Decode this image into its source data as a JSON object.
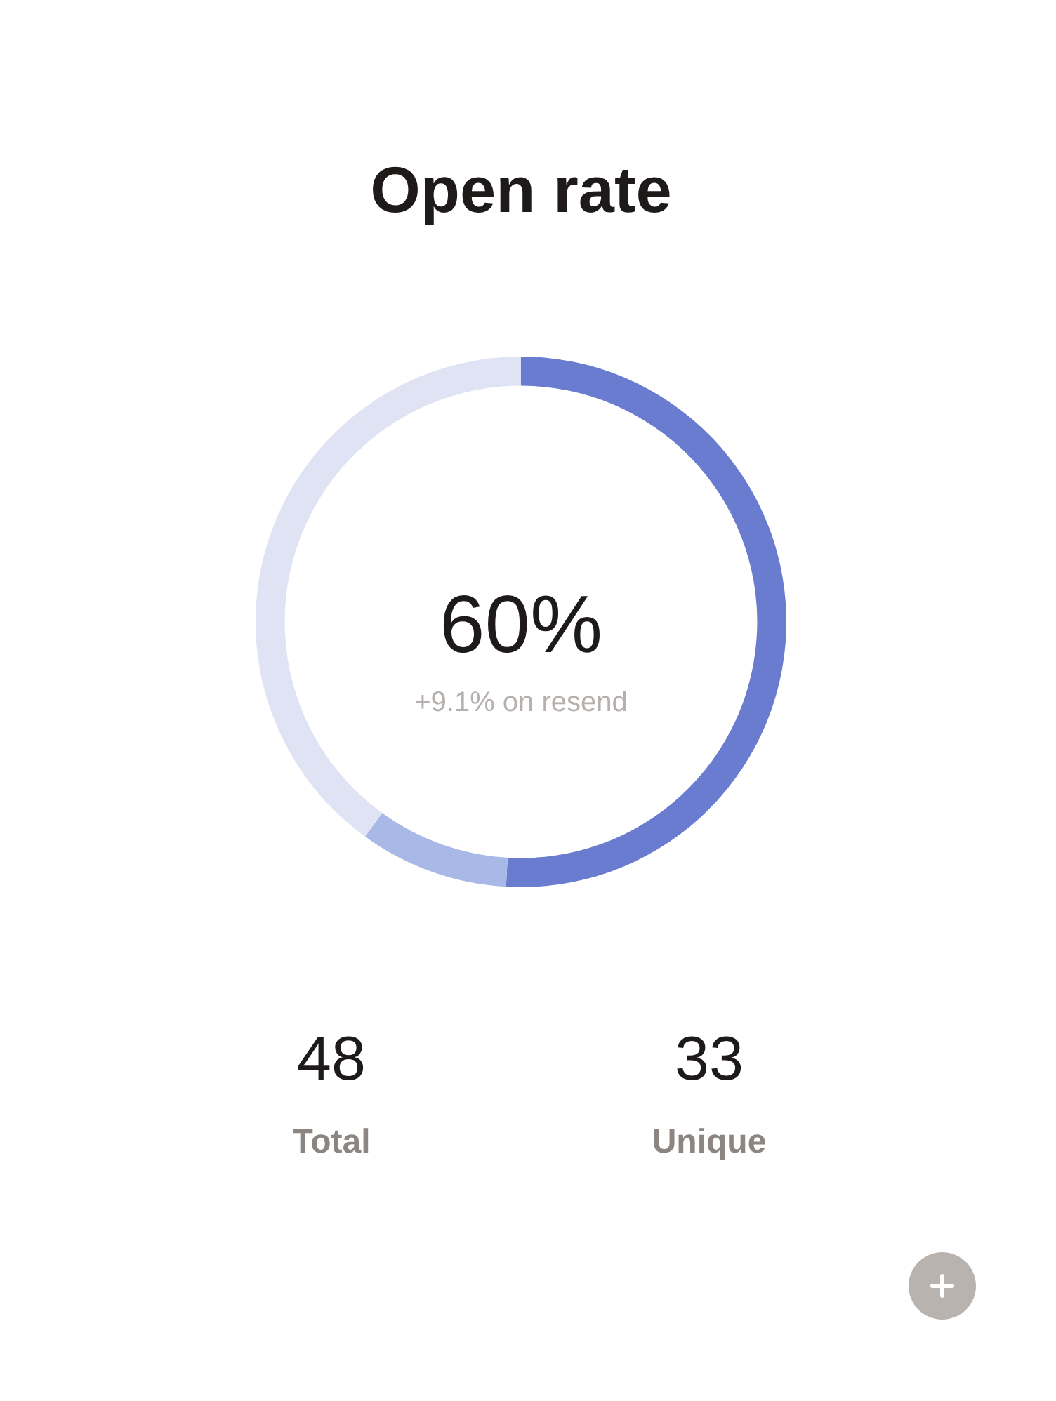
{
  "chart_data": {
    "type": "donut",
    "title": "Open rate",
    "categories": [
      null,
      null,
      null
    ],
    "values": [
      50.9,
      9.1,
      40
    ],
    "colors": [
      "#6a7ccf",
      "#a8b9e8",
      "#dfe3f3"
    ],
    "legend": false,
    "annotations": [
      "60%",
      "+9.1% on resend",
      "48",
      "Total",
      "33",
      "Unique"
    ]
  }
}
